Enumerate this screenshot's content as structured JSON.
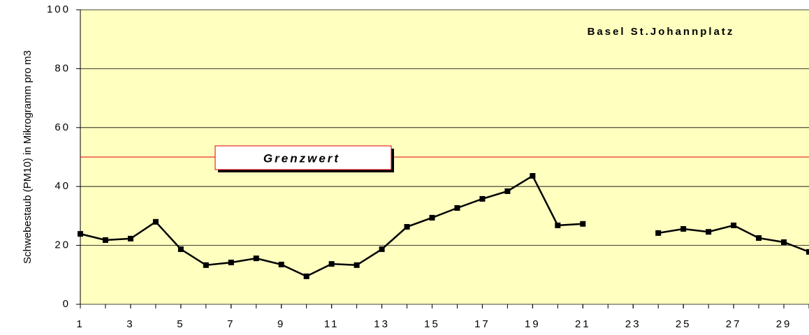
{
  "chart_data": {
    "type": "line",
    "title": "Basel St.Johannplatz",
    "y_label": "Schwebestaub (PM10) in Mikrogramm pro m3",
    "x": [
      1,
      2,
      3,
      4,
      5,
      6,
      7,
      8,
      9,
      10,
      11,
      12,
      13,
      14,
      15,
      16,
      17,
      18,
      19,
      20,
      21,
      22,
      23,
      24,
      25,
      26,
      27,
      28,
      29,
      30
    ],
    "series": [
      {
        "name": "Basel St.Johannplatz",
        "color": "#000000",
        "values": [
          23.9,
          21.8,
          22.3,
          28,
          18.7,
          13.3,
          14.2,
          15.6,
          13.5,
          9.5,
          13.7,
          13.3,
          18.7,
          26.3,
          29.4,
          32.7,
          35.8,
          38.4,
          43.6,
          26.8,
          27.3,
          null,
          null,
          24.2,
          25.6,
          24.6,
          26.8,
          22.5,
          21.1,
          17.8
        ]
      }
    ],
    "xlim": [
      1,
      30
    ],
    "xticks": [
      1,
      3,
      5,
      7,
      9,
      11,
      13,
      15,
      17,
      19,
      21,
      23,
      25,
      27,
      29
    ],
    "ylim": [
      0,
      100
    ],
    "yticks": [
      0,
      20,
      40,
      60,
      80,
      100
    ],
    "grid": true,
    "threshold": {
      "value": 50,
      "label": "Grenzwert",
      "color": "#e00000"
    },
    "plot_background": "#ffffc0"
  }
}
